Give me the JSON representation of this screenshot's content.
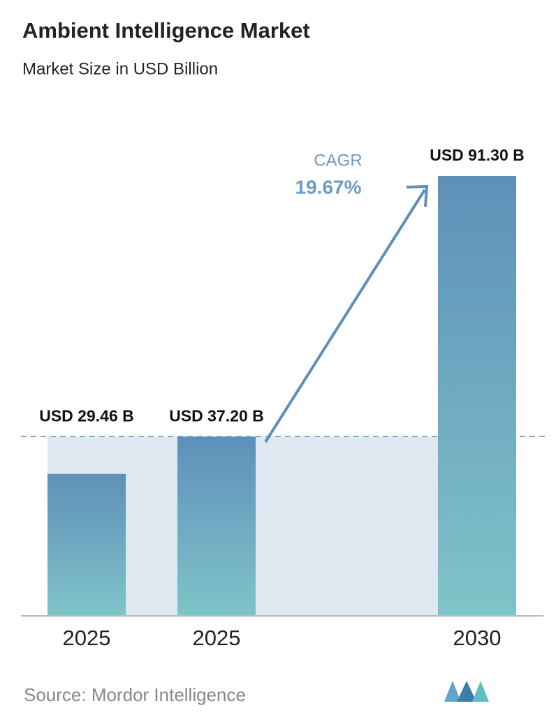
{
  "chart_data": {
    "type": "bar",
    "title": "Ambient Intelligence Market",
    "subtitle": "Market Size in USD Billion",
    "categories": [
      "2025",
      "2025",
      "2030"
    ],
    "values": [
      29.46,
      37.2,
      91.3
    ],
    "value_labels": [
      "USD 29.46 B",
      "USD 37.20 B",
      "USD 91.30 B"
    ],
    "annotation": {
      "label": "CAGR",
      "value": "19.67%"
    },
    "source": "Source:  Mordor Intelligence"
  }
}
